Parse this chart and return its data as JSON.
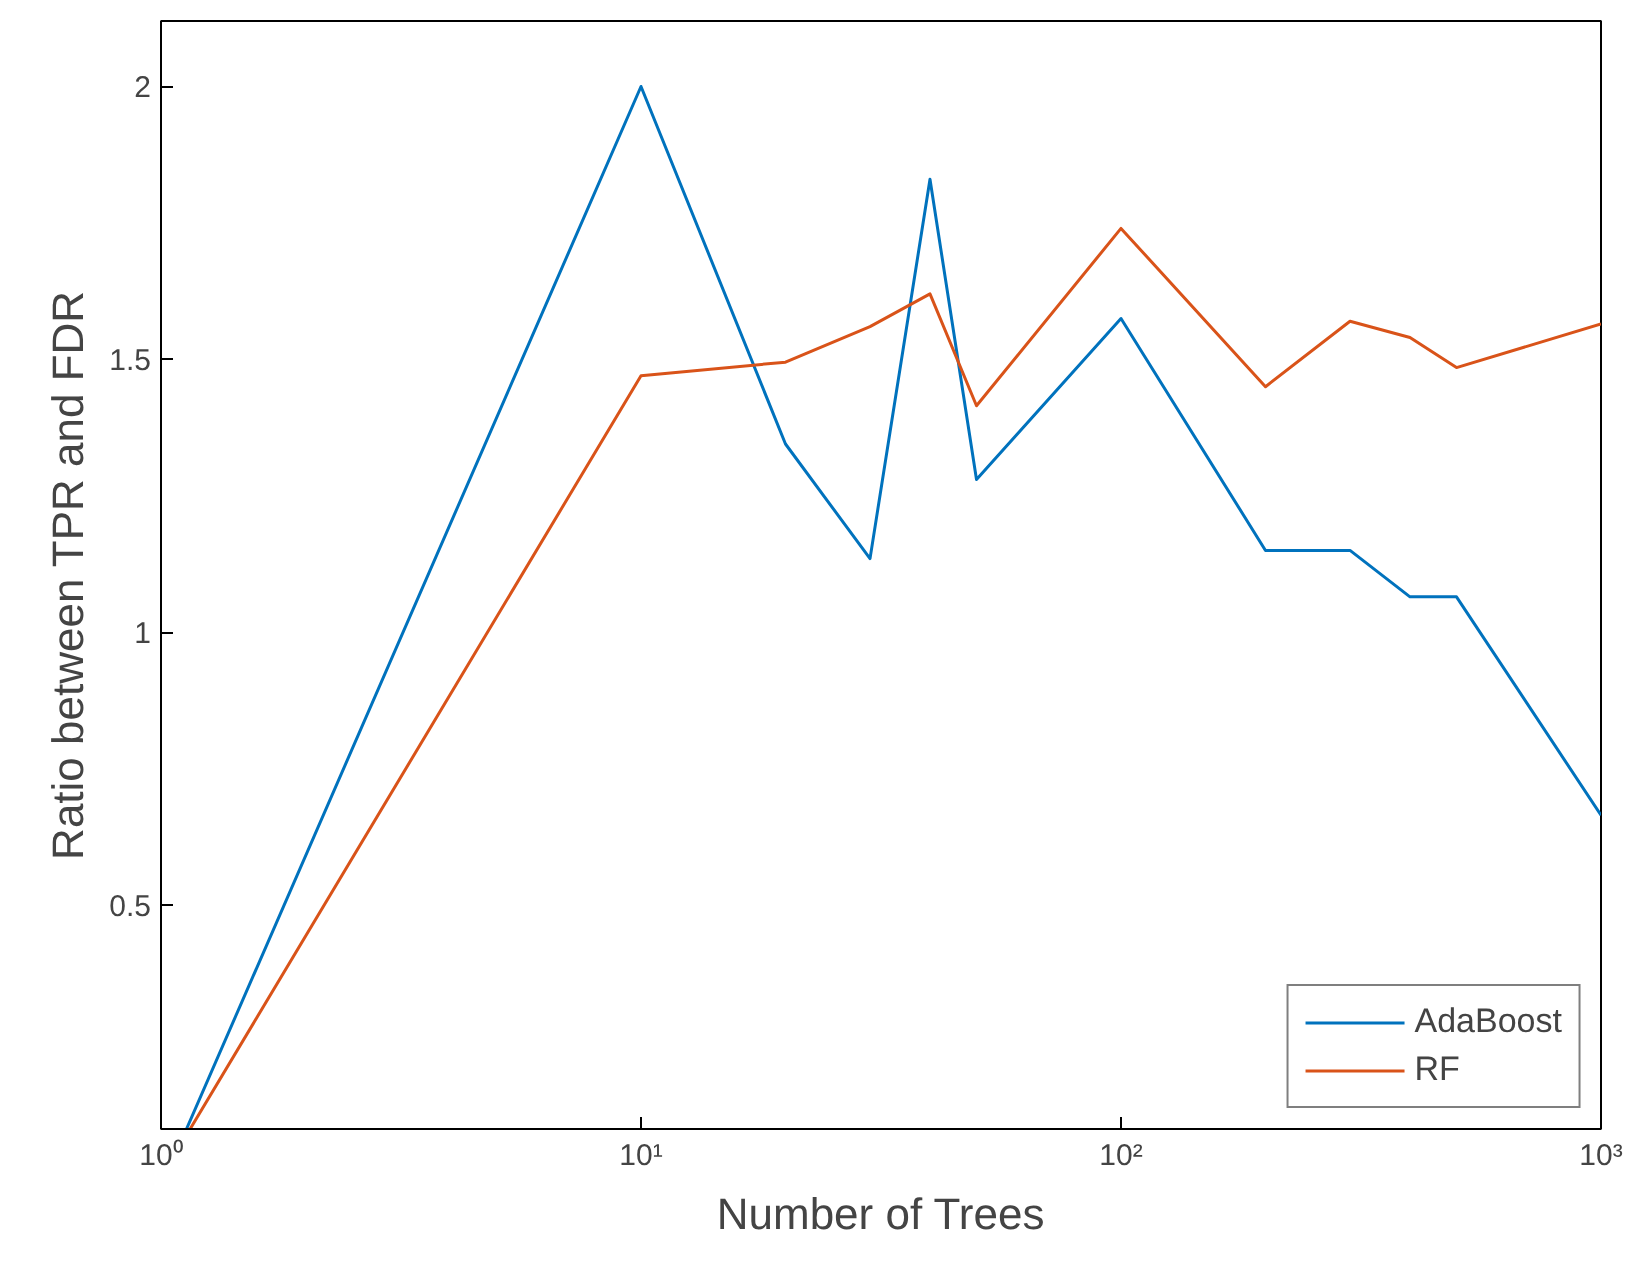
{
  "chart_data": {
    "type": "line",
    "xlabel": "Number of Trees",
    "ylabel": "Ratio between TPR and FDR",
    "log": "x",
    "xlim": [
      1,
      1000
    ],
    "xticks": [
      {
        "value": 1,
        "label": "10⁰"
      },
      {
        "value": 10,
        "label": "10¹"
      },
      {
        "value": 100,
        "label": "10²"
      },
      {
        "value": 1000,
        "label": "10³"
      }
    ],
    "ylim": [
      0.09,
      2.12
    ],
    "yticks": [
      0.5,
      1,
      1.5,
      2
    ],
    "grid": false,
    "legend": "bottom right",
    "line_style": "solid",
    "series": [
      {
        "name": "AdaBoost",
        "color": "#0072bd",
        "x": [
          1.13,
          10,
          20,
          30,
          40,
          50,
          100,
          200,
          300,
          400,
          500,
          1000
        ],
        "values": [
          0.09,
          2.0,
          1.345,
          1.135,
          1.83,
          1.28,
          1.575,
          1.15,
          1.15,
          1.065,
          1.065,
          0.665
        ]
      },
      {
        "name": "RF",
        "color": "#d95319",
        "x": [
          1.15,
          10,
          20,
          30,
          40,
          50,
          100,
          200,
          300,
          400,
          500,
          1000
        ],
        "values": [
          0.09,
          1.47,
          1.495,
          1.56,
          1.62,
          1.415,
          1.74,
          1.45,
          1.57,
          1.54,
          1.485,
          1.565
        ]
      }
    ]
  }
}
